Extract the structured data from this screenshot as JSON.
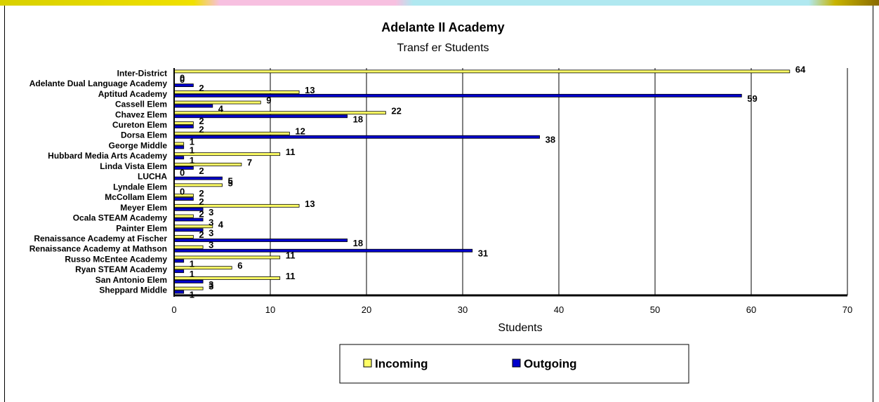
{
  "chart_data": {
    "type": "bar",
    "orientation": "horizontal",
    "title": "Adelante II Academy",
    "subtitle": "Transf er Students",
    "xlabel": "Students",
    "ylabel": "",
    "xlim": [
      0,
      70
    ],
    "xticks": [
      0,
      10,
      20,
      30,
      40,
      50,
      60,
      70
    ],
    "grid": "vertical",
    "legend_position": "bottom",
    "categories": [
      "Inter-District",
      "Adelante Dual Language Academy",
      "Aptitud Academy",
      "Cassell Elem",
      "Chavez Elem",
      "Cureton Elem",
      "Dorsa Elem",
      "George Middle",
      "Hubbard Media Arts Academy",
      "Linda Vista Elem",
      "LUCHA",
      "Lyndale Elem",
      "McCollam Elem",
      "Meyer Elem",
      "Ocala STEAM Academy",
      "Painter Elem",
      "Renaissance Academy at Fischer",
      "Renaissance Academy at Mathson",
      "Russo McEntee Academy",
      "Ryan STEAM Academy",
      "San Antonio Elem",
      "Sheppard Middle"
    ],
    "series": [
      {
        "name": "Incoming",
        "color": "#FFFF66",
        "values": [
          64,
          0,
          13,
          9,
          22,
          2,
          12,
          1,
          11,
          7,
          0,
          5,
          2,
          13,
          2,
          4,
          2,
          3,
          11,
          6,
          11,
          3
        ]
      },
      {
        "name": "Outgoing",
        "color": "#0000CC",
        "values": [
          0,
          2,
          59,
          4,
          18,
          2,
          38,
          1,
          1,
          2,
          5,
          0,
          2,
          3,
          3,
          3,
          18,
          31,
          1,
          1,
          3,
          1
        ]
      }
    ]
  }
}
